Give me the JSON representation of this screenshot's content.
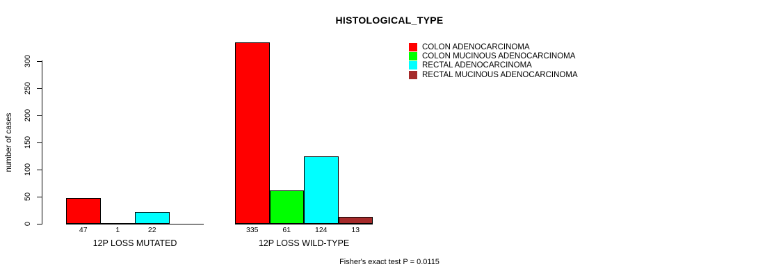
{
  "page": {
    "background": "#ffffff",
    "text_color": "#000000"
  },
  "chart_data": {
    "type": "bar",
    "title": "HISTOLOGICAL_TYPE",
    "ylabel": "number of cases",
    "xlabel": "",
    "yticks": [
      0,
      50,
      100,
      150,
      200,
      250,
      300
    ],
    "ylim": [
      0,
      335
    ],
    "grid": false,
    "legend_position": "top-right",
    "categories": [
      "12P LOSS MUTATED",
      "12P LOSS WILD-TYPE"
    ],
    "series": [
      {
        "name": "COLON ADENOCARCINOMA",
        "color": "#ff0000",
        "values": [
          47,
          335
        ]
      },
      {
        "name": "COLON MUCINOUS ADENOCARCINOMA",
        "color": "#00ff00",
        "values": [
          1,
          61
        ]
      },
      {
        "name": "RECTAL ADENOCARCINOMA",
        "color": "#00ffff",
        "values": [
          22,
          124
        ]
      },
      {
        "name": "RECTAL MUCINOUS ADENOCARCINOMA",
        "color": "#a52a2a",
        "values": [
          0,
          13
        ]
      }
    ],
    "bar_value_labels": [
      [
        "47",
        "1",
        "22",
        ""
      ],
      [
        "335",
        "61",
        "124",
        "13"
      ]
    ],
    "footnote": "Fisher's exact test P = 0.0115"
  }
}
